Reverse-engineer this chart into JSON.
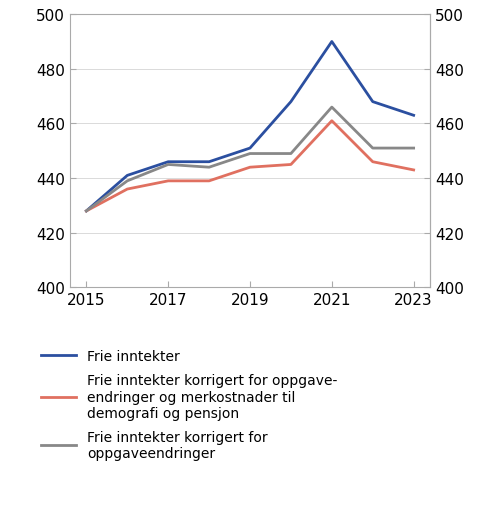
{
  "years": [
    2015,
    2016,
    2017,
    2018,
    2019,
    2020,
    2021,
    2022,
    2023
  ],
  "frie_inntekter": [
    428,
    441,
    446,
    446,
    451,
    468,
    490,
    468,
    463
  ],
  "korrigert_oppgave_demografi": [
    428,
    436,
    439,
    439,
    444,
    445,
    461,
    446,
    443
  ],
  "korrigert_oppgave": [
    428,
    439,
    445,
    444,
    449,
    449,
    466,
    451,
    451
  ],
  "color_blue": "#2b4fa0",
  "color_red": "#e07060",
  "color_gray": "#888888",
  "ylim": [
    400,
    500
  ],
  "yticks": [
    400,
    420,
    440,
    460,
    480,
    500
  ],
  "xticks": [
    2015,
    2017,
    2019,
    2021,
    2023
  ],
  "legend_labels": [
    "Frie inntekter",
    "Frie inntekter korrigert for oppgave-\nendringer og merkostnader til\ndemografi og pensjon",
    "Frie inntekter korrigert for\noppgaveendringer"
  ],
  "linewidth": 2.0,
  "font_size_ticks": 11,
  "font_size_legend": 10,
  "spine_color": "#aaaaaa",
  "grid_color": "#cccccc",
  "grid_linewidth": 0.5
}
